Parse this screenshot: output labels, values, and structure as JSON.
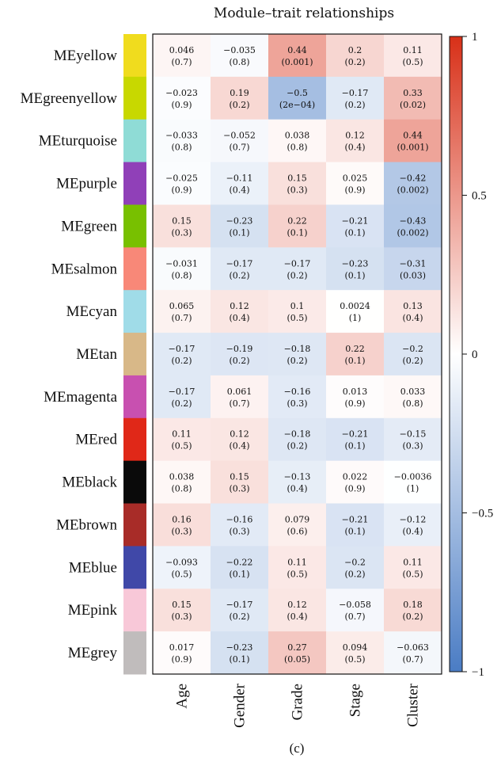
{
  "chart_data": {
    "type": "heatmap",
    "title": "Module–trait relationships",
    "panel_label": "(c)",
    "columns": [
      "Age",
      "Gender",
      "Grade",
      "Stage",
      "Cluster"
    ],
    "rows": [
      {
        "name": "MEyellow",
        "color": "#f0dc1e",
        "cells": [
          [
            "0.046",
            "(0.7)"
          ],
          [
            "−0.035",
            "(0.8)"
          ],
          [
            "0.44",
            "(0.001)"
          ],
          [
            "0.2",
            "(0.2)"
          ],
          [
            "0.11",
            "(0.5)"
          ]
        ],
        "values": [
          0.046,
          -0.035,
          0.44,
          0.2,
          0.11
        ]
      },
      {
        "name": "MEgreenyellow",
        "color": "#c8d800",
        "cells": [
          [
            "−0.023",
            "(0.9)"
          ],
          [
            "0.19",
            "(0.2)"
          ],
          [
            "−0.5",
            "(2e−04)"
          ],
          [
            "−0.17",
            "(0.2)"
          ],
          [
            "0.33",
            "(0.02)"
          ]
        ],
        "values": [
          -0.023,
          0.19,
          -0.5,
          -0.17,
          0.33
        ]
      },
      {
        "name": "MEturquoise",
        "color": "#8fdcd6",
        "cells": [
          [
            "−0.033",
            "(0.8)"
          ],
          [
            "−0.052",
            "(0.7)"
          ],
          [
            "0.038",
            "(0.8)"
          ],
          [
            "0.12",
            "(0.4)"
          ],
          [
            "0.44",
            "(0.001)"
          ]
        ],
        "values": [
          -0.033,
          -0.052,
          0.038,
          0.12,
          0.44
        ]
      },
      {
        "name": "MEpurple",
        "color": "#9040b8",
        "cells": [
          [
            "−0.025",
            "(0.9)"
          ],
          [
            "−0.11",
            "(0.4)"
          ],
          [
            "0.15",
            "(0.3)"
          ],
          [
            "0.025",
            "(0.9)"
          ],
          [
            "−0.42",
            "(0.002)"
          ]
        ],
        "values": [
          -0.025,
          -0.11,
          0.15,
          0.025,
          -0.42
        ]
      },
      {
        "name": "MEgreen",
        "color": "#78c000",
        "cells": [
          [
            "0.15",
            "(0.3)"
          ],
          [
            "−0.23",
            "(0.1)"
          ],
          [
            "0.22",
            "(0.1)"
          ],
          [
            "−0.21",
            "(0.1)"
          ],
          [
            "−0.43",
            "(0.002)"
          ]
        ],
        "values": [
          0.15,
          -0.23,
          0.22,
          -0.21,
          -0.43
        ]
      },
      {
        "name": "MEsalmon",
        "color": "#f88878",
        "cells": [
          [
            "−0.031",
            "(0.8)"
          ],
          [
            "−0.17",
            "(0.2)"
          ],
          [
            "−0.17",
            "(0.2)"
          ],
          [
            "−0.23",
            "(0.1)"
          ],
          [
            "−0.31",
            "(0.03)"
          ]
        ],
        "values": [
          -0.031,
          -0.17,
          -0.17,
          -0.23,
          -0.31
        ]
      },
      {
        "name": "MEcyan",
        "color": "#a0dce8",
        "cells": [
          [
            "0.065",
            "(0.7)"
          ],
          [
            "0.12",
            "(0.4)"
          ],
          [
            "0.1",
            "(0.5)"
          ],
          [
            "0.0024",
            "(1)"
          ],
          [
            "0.13",
            "(0.4)"
          ]
        ],
        "values": [
          0.065,
          0.12,
          0.1,
          0.0024,
          0.13
        ]
      },
      {
        "name": "MEtan",
        "color": "#d8b888",
        "cells": [
          [
            "−0.17",
            "(0.2)"
          ],
          [
            "−0.19",
            "(0.2)"
          ],
          [
            "−0.18",
            "(0.2)"
          ],
          [
            "0.22",
            "(0.1)"
          ],
          [
            "−0.2",
            "(0.2)"
          ]
        ],
        "values": [
          -0.17,
          -0.19,
          -0.18,
          0.22,
          -0.2
        ]
      },
      {
        "name": "MEmagenta",
        "color": "#c850b0",
        "cells": [
          [
            "−0.17",
            "(0.2)"
          ],
          [
            "0.061",
            "(0.7)"
          ],
          [
            "−0.16",
            "(0.3)"
          ],
          [
            "0.013",
            "(0.9)"
          ],
          [
            "0.033",
            "(0.8)"
          ]
        ],
        "values": [
          -0.17,
          0.061,
          -0.16,
          0.013,
          0.033
        ]
      },
      {
        "name": "MEred",
        "color": "#e02818",
        "cells": [
          [
            "0.11",
            "(0.5)"
          ],
          [
            "0.12",
            "(0.4)"
          ],
          [
            "−0.18",
            "(0.2)"
          ],
          [
            "−0.21",
            "(0.1)"
          ],
          [
            "−0.15",
            "(0.3)"
          ]
        ],
        "values": [
          0.11,
          0.12,
          -0.18,
          -0.21,
          -0.15
        ]
      },
      {
        "name": "MEblack",
        "color": "#0a0a0a",
        "cells": [
          [
            "0.038",
            "(0.8)"
          ],
          [
            "0.15",
            "(0.3)"
          ],
          [
            "−0.13",
            "(0.4)"
          ],
          [
            "0.022",
            "(0.9)"
          ],
          [
            "−0.0036",
            "(1)"
          ]
        ],
        "values": [
          0.038,
          0.15,
          -0.13,
          0.022,
          -0.0036
        ]
      },
      {
        "name": "MEbrown",
        "color": "#a82c28",
        "cells": [
          [
            "0.16",
            "(0.3)"
          ],
          [
            "−0.16",
            "(0.3)"
          ],
          [
            "0.079",
            "(0.6)"
          ],
          [
            "−0.21",
            "(0.1)"
          ],
          [
            "−0.12",
            "(0.4)"
          ]
        ],
        "values": [
          0.16,
          -0.16,
          0.079,
          -0.21,
          -0.12
        ]
      },
      {
        "name": "MEblue",
        "color": "#4048a8",
        "cells": [
          [
            "−0.093",
            "(0.5)"
          ],
          [
            "−0.22",
            "(0.1)"
          ],
          [
            "0.11",
            "(0.5)"
          ],
          [
            "−0.2",
            "(0.2)"
          ],
          [
            "0.11",
            "(0.5)"
          ]
        ],
        "values": [
          -0.093,
          -0.22,
          0.11,
          -0.2,
          0.11
        ]
      },
      {
        "name": "MEpink",
        "color": "#f8c8d8",
        "cells": [
          [
            "0.15",
            "(0.3)"
          ],
          [
            "−0.17",
            "(0.2)"
          ],
          [
            "0.12",
            "(0.4)"
          ],
          [
            "−0.058",
            "(0.7)"
          ],
          [
            "0.18",
            "(0.2)"
          ]
        ],
        "values": [
          0.15,
          -0.17,
          0.12,
          -0.058,
          0.18
        ]
      },
      {
        "name": "MEgrey",
        "color": "#c0bcbc",
        "cells": [
          [
            "0.017",
            "(0.9)"
          ],
          [
            "−0.23",
            "(0.1)"
          ],
          [
            "0.27",
            "(0.05)"
          ],
          [
            "0.094",
            "(0.5)"
          ],
          [
            "−0.063",
            "(0.7)"
          ]
        ],
        "values": [
          0.017,
          -0.23,
          0.27,
          0.094,
          -0.063
        ]
      }
    ],
    "colorbar": {
      "range": [
        -1,
        1
      ],
      "ticks": [
        1,
        0.5,
        0,
        -0.5,
        -1
      ],
      "tick_labels": [
        "1",
        "0.5",
        "0",
        "−0.5",
        "−1"
      ],
      "low_color": "#4a7cc4",
      "mid_color": "#ffffff",
      "high_color": "#d83018"
    }
  }
}
